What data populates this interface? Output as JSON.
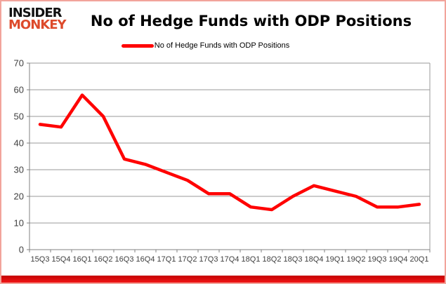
{
  "header": {
    "logo_line1": "INSIDER",
    "logo_line2": "MONKEY",
    "title": "No of Hedge Funds with ODP Positions"
  },
  "legend": {
    "label": "No of Hedge Funds with ODP Positions"
  },
  "chart_data": {
    "type": "line",
    "title": "No of Hedge Funds with ODP Positions",
    "categories": [
      "15Q3",
      "15Q4",
      "16Q1",
      "16Q2",
      "16Q3",
      "16Q4",
      "17Q1",
      "17Q2",
      "17Q3",
      "17Q4",
      "18Q1",
      "18Q2",
      "18Q3",
      "18Q4",
      "19Q1",
      "19Q2",
      "19Q3",
      "19Q4",
      "20Q1"
    ],
    "series": [
      {
        "name": "No of Hedge Funds with ODP Positions",
        "values": [
          47,
          46,
          58,
          50,
          34,
          32,
          29,
          26,
          21,
          21,
          16,
          15,
          20,
          24,
          22,
          20,
          16,
          16,
          17
        ]
      }
    ],
    "xlabel": "",
    "ylabel": "",
    "ylim": [
      0,
      70
    ],
    "ytick_interval": 10,
    "grid": true,
    "legend_position": "top-center",
    "line_color": "#ff0000"
  },
  "colors": {
    "line": "#ff0000",
    "grid": "#9a9a9a",
    "axis": "#808080",
    "tick_text": "#3f3f3f",
    "logo_accent": "#dd4a2b",
    "frame_border": "#f2a49b",
    "bottom_bar": "#e01414"
  }
}
